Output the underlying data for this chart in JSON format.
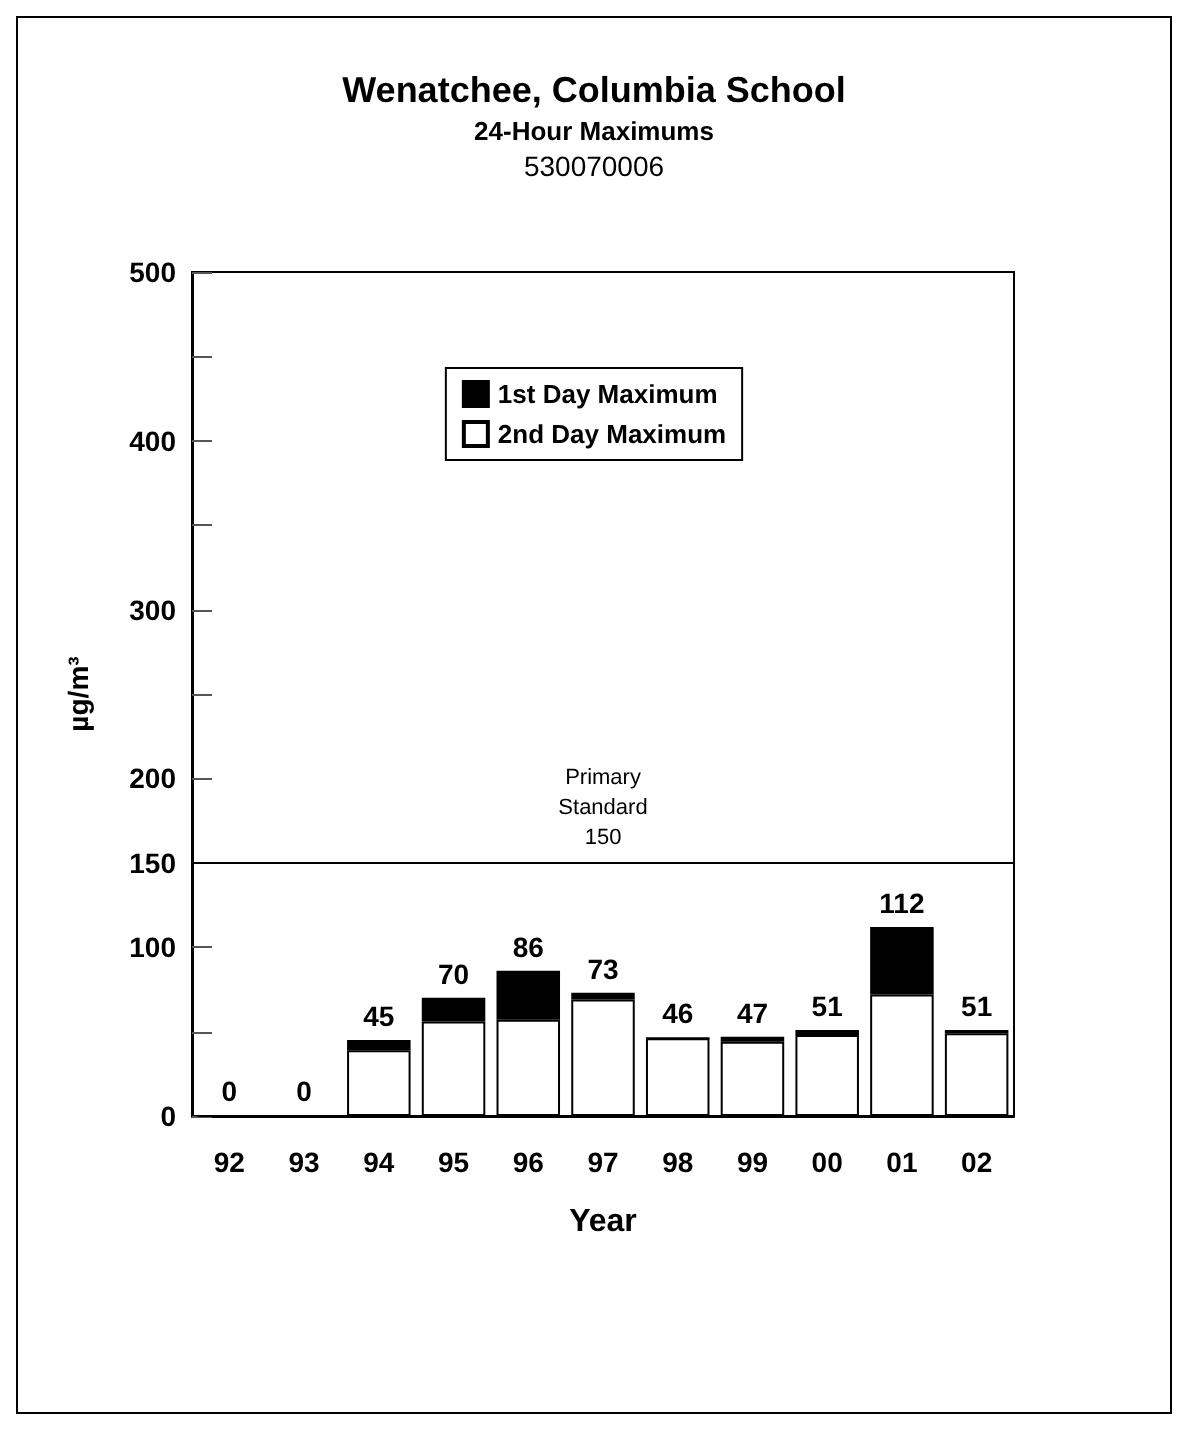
{
  "chart_data": {
    "type": "bar",
    "title": "Wenatchee, Columbia School",
    "subtitle": "24-Hour Maximums",
    "annotations": [
      "530070006"
    ],
    "xlabel": "Year",
    "ylabel": "µg/m³",
    "categories": [
      "92",
      "93",
      "94",
      "95",
      "96",
      "97",
      "98",
      "99",
      "00",
      "01",
      "02"
    ],
    "stacked": true,
    "series": [
      {
        "name": "2nd Day Maximum",
        "color": "#ffffff",
        "values": [
          0,
          0,
          39,
          56,
          57,
          69,
          46,
          44,
          48,
          72,
          49
        ]
      },
      {
        "name": "1st Day Maximum",
        "color": "#000000",
        "values": [
          0,
          0,
          6,
          14,
          29,
          4,
          0,
          3,
          3,
          40,
          2
        ]
      }
    ],
    "totals": [
      "0",
      "0",
      "45",
      "70",
      "86",
      "73",
      "46",
      "47",
      "51",
      "112",
      "51"
    ],
    "ylim": [
      0,
      500
    ],
    "yticks": [
      0,
      {
        "value": 50,
        "label": null
      },
      100,
      150,
      200,
      {
        "value": 250,
        "label": null
      },
      300,
      {
        "value": 350,
        "label": null
      },
      400,
      {
        "value": 450,
        "label": null
      },
      500
    ],
    "ref_lines": [
      {
        "axis": "y",
        "value": 150,
        "label": "Primary\nStandard\n150",
        "color": "#000000"
      }
    ],
    "grid": false,
    "legend": "top"
  }
}
